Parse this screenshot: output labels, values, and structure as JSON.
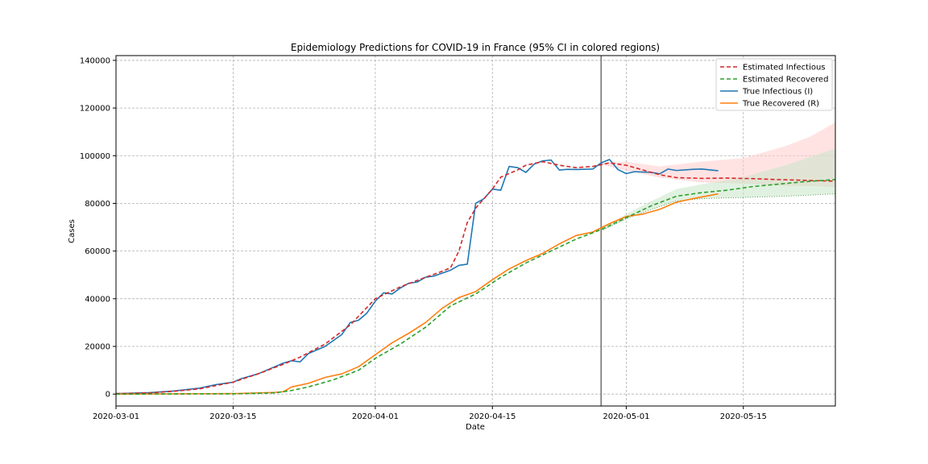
{
  "chart_data": {
    "type": "line",
    "title": "Epidemiology Predictions for COVID-19 in France (95% CI in colored regions)",
    "xlabel": "Date",
    "ylabel": "Cases",
    "x_range": [
      "2020-03-01",
      "2020-05-26"
    ],
    "ylim": [
      -5000,
      142000
    ],
    "x_ticks": [
      "2020-03-01",
      "2020-03-15",
      "2020-04-01",
      "2020-04-15",
      "2020-05-01",
      "2020-05-15"
    ],
    "y_ticks": [
      0,
      20000,
      40000,
      60000,
      80000,
      100000,
      120000,
      140000
    ],
    "grid": true,
    "legend_position": "top-right",
    "vertical_line_date": "2020-04-28",
    "colors": {
      "estimated_infectious": "#d62728",
      "estimated_recovered": "#2ca02c",
      "true_infectious": "#1f77b4",
      "true_recovered": "#ff7f0e",
      "ci_infectious": "#ffcccc",
      "ci_recovered": "#c8e6c8",
      "vline": "#808080",
      "grid": "#b0b0b0"
    },
    "series": [
      {
        "name": "Estimated Infectious",
        "style": "dashed",
        "points": [
          [
            "2020-03-01",
            200
          ],
          [
            "2020-03-05",
            500
          ],
          [
            "2020-03-08",
            1200
          ],
          [
            "2020-03-11",
            2200
          ],
          [
            "2020-03-15",
            5000
          ],
          [
            "2020-03-18",
            8500
          ],
          [
            "2020-03-21",
            12500
          ],
          [
            "2020-03-23",
            15500
          ],
          [
            "2020-03-26",
            21000
          ],
          [
            "2020-03-29",
            29000
          ],
          [
            "2020-04-01",
            40000
          ],
          [
            "2020-04-04",
            45000
          ],
          [
            "2020-04-07",
            49000
          ],
          [
            "2020-04-09",
            51500
          ],
          [
            "2020-04-10",
            53000
          ],
          [
            "2020-04-11",
            60000
          ],
          [
            "2020-04-12",
            72000
          ],
          [
            "2020-04-13",
            78000
          ],
          [
            "2020-04-15",
            86000
          ],
          [
            "2020-04-16",
            91000
          ],
          [
            "2020-04-18",
            94000
          ],
          [
            "2020-04-19",
            96000
          ],
          [
            "2020-04-21",
            97500
          ],
          [
            "2020-04-23",
            96000
          ],
          [
            "2020-04-25",
            95000
          ],
          [
            "2020-04-27",
            95500
          ],
          [
            "2020-04-29",
            97000
          ],
          [
            "2020-05-01",
            96000
          ],
          [
            "2020-05-03",
            94000
          ],
          [
            "2020-05-05",
            92000
          ],
          [
            "2020-05-07",
            90800
          ],
          [
            "2020-05-10",
            90500
          ],
          [
            "2020-05-13",
            90600
          ],
          [
            "2020-05-16",
            90400
          ],
          [
            "2020-05-19",
            90000
          ],
          [
            "2020-05-22",
            89700
          ],
          [
            "2020-05-26",
            89300
          ]
        ]
      },
      {
        "name": "Estimated Recovered",
        "style": "dashed",
        "points": [
          [
            "2020-03-01",
            0
          ],
          [
            "2020-03-15",
            100
          ],
          [
            "2020-03-20",
            500
          ],
          [
            "2020-03-22",
            1500
          ],
          [
            "2020-03-24",
            3000
          ],
          [
            "2020-03-27",
            6000
          ],
          [
            "2020-03-30",
            10000
          ],
          [
            "2020-04-01",
            15000
          ],
          [
            "2020-04-04",
            21000
          ],
          [
            "2020-04-07",
            28000
          ],
          [
            "2020-04-10",
            37000
          ],
          [
            "2020-04-13",
            42000
          ],
          [
            "2020-04-16",
            49000
          ],
          [
            "2020-04-19",
            55000
          ],
          [
            "2020-04-22",
            60000
          ],
          [
            "2020-04-25",
            65000
          ],
          [
            "2020-04-28",
            69000
          ],
          [
            "2020-05-01",
            74000
          ],
          [
            "2020-05-04",
            79000
          ],
          [
            "2020-05-07",
            83000
          ],
          [
            "2020-05-10",
            84500
          ],
          [
            "2020-05-13",
            85500
          ],
          [
            "2020-05-16",
            87000
          ],
          [
            "2020-05-19",
            88000
          ],
          [
            "2020-05-22",
            89000
          ],
          [
            "2020-05-26",
            90000
          ]
        ]
      },
      {
        "name": "True Infectious (I)",
        "style": "solid",
        "points": [
          [
            "2020-03-01",
            200
          ],
          [
            "2020-03-05",
            600
          ],
          [
            "2020-03-08",
            1300
          ],
          [
            "2020-03-11",
            2500
          ],
          [
            "2020-03-13",
            4000
          ],
          [
            "2020-03-15",
            5000
          ],
          [
            "2020-03-16",
            6500
          ],
          [
            "2020-03-18",
            8500
          ],
          [
            "2020-03-21",
            13000
          ],
          [
            "2020-03-22",
            14000
          ],
          [
            "2020-03-23",
            13500
          ],
          [
            "2020-03-24",
            17000
          ],
          [
            "2020-03-26",
            20000
          ],
          [
            "2020-03-28",
            25000
          ],
          [
            "2020-03-29",
            30000
          ],
          [
            "2020-03-30",
            31000
          ],
          [
            "2020-03-31",
            34000
          ],
          [
            "2020-04-01",
            39000
          ],
          [
            "2020-04-02",
            42500
          ],
          [
            "2020-04-03",
            42000
          ],
          [
            "2020-04-04",
            44500
          ],
          [
            "2020-04-05",
            46500
          ],
          [
            "2020-04-06",
            47000
          ],
          [
            "2020-04-07",
            49000
          ],
          [
            "2020-04-08",
            49500
          ],
          [
            "2020-04-10",
            52000
          ],
          [
            "2020-04-11",
            54000
          ],
          [
            "2020-04-12",
            54500
          ],
          [
            "2020-04-13",
            80000
          ],
          [
            "2020-04-14",
            82000
          ],
          [
            "2020-04-15",
            86000
          ],
          [
            "2020-04-16",
            85500
          ],
          [
            "2020-04-17",
            95500
          ],
          [
            "2020-04-18",
            95000
          ],
          [
            "2020-04-19",
            93000
          ],
          [
            "2020-04-20",
            96500
          ],
          [
            "2020-04-21",
            97800
          ],
          [
            "2020-04-22",
            98200
          ],
          [
            "2020-04-23",
            94000
          ],
          [
            "2020-04-24",
            94300
          ],
          [
            "2020-04-25",
            94200
          ],
          [
            "2020-04-27",
            94400
          ],
          [
            "2020-04-28",
            97000
          ],
          [
            "2020-04-29",
            98400
          ],
          [
            "2020-04-30",
            94200
          ],
          [
            "2020-05-01",
            92500
          ],
          [
            "2020-05-02",
            93300
          ],
          [
            "2020-05-04",
            93000
          ],
          [
            "2020-05-05",
            92400
          ],
          [
            "2020-05-06",
            94400
          ],
          [
            "2020-05-07",
            93800
          ],
          [
            "2020-05-09",
            94300
          ],
          [
            "2020-05-10",
            94400
          ],
          [
            "2020-05-12",
            93700
          ]
        ]
      },
      {
        "name": "True Recovered (R)",
        "style": "solid",
        "points": [
          [
            "2020-03-01",
            0
          ],
          [
            "2020-03-15",
            200
          ],
          [
            "2020-03-20",
            700
          ],
          [
            "2020-03-21",
            1000
          ],
          [
            "2020-03-22",
            3000
          ],
          [
            "2020-03-24",
            4500
          ],
          [
            "2020-03-26",
            7000
          ],
          [
            "2020-03-28",
            8500
          ],
          [
            "2020-03-30",
            11500
          ],
          [
            "2020-04-01",
            16500
          ],
          [
            "2020-04-03",
            21500
          ],
          [
            "2020-04-05",
            25500
          ],
          [
            "2020-04-07",
            30000
          ],
          [
            "2020-04-09",
            36000
          ],
          [
            "2020-04-11",
            40500
          ],
          [
            "2020-04-13",
            43000
          ],
          [
            "2020-04-15",
            48000
          ],
          [
            "2020-04-17",
            52500
          ],
          [
            "2020-04-19",
            56000
          ],
          [
            "2020-04-21",
            59000
          ],
          [
            "2020-04-23",
            63000
          ],
          [
            "2020-04-25",
            66500
          ],
          [
            "2020-04-27",
            68000
          ],
          [
            "2020-04-29",
            71500
          ],
          [
            "2020-05-01",
            74500
          ],
          [
            "2020-05-03",
            75500
          ],
          [
            "2020-05-05",
            77500
          ],
          [
            "2020-05-07",
            80500
          ],
          [
            "2020-05-09",
            82000
          ],
          [
            "2020-05-12",
            84000
          ]
        ]
      }
    ],
    "confidence_bands": [
      {
        "series": "Estimated Infectious",
        "points": [
          [
            "2020-04-28",
            96500,
            97000
          ],
          [
            "2020-05-01",
            94000,
            97500
          ],
          [
            "2020-05-05",
            91000,
            95500
          ],
          [
            "2020-05-10",
            89000,
            97500
          ],
          [
            "2020-05-15",
            88500,
            99000
          ],
          [
            "2020-05-20",
            87500,
            104000
          ],
          [
            "2020-05-23",
            87500,
            108000
          ],
          [
            "2020-05-26",
            87000,
            114000
          ]
        ]
      },
      {
        "series": "Estimated Recovered",
        "points": [
          [
            "2020-04-28",
            68500,
            69500
          ],
          [
            "2020-05-01",
            73500,
            75500
          ],
          [
            "2020-05-04",
            77500,
            81000
          ],
          [
            "2020-05-07",
            81000,
            86000
          ],
          [
            "2020-05-10",
            82000,
            88000
          ],
          [
            "2020-05-15",
            82500,
            91000
          ],
          [
            "2020-05-20",
            83000,
            96000
          ],
          [
            "2020-05-26",
            84000,
            103000
          ]
        ]
      }
    ]
  }
}
